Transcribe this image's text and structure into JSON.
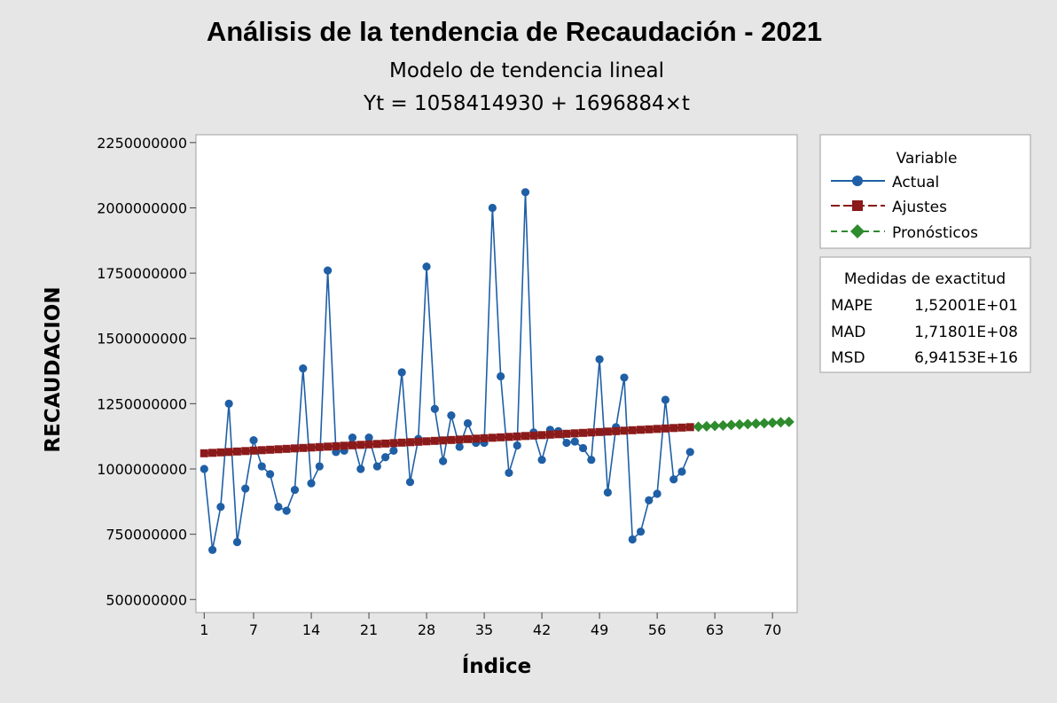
{
  "chart_data": {
    "type": "line",
    "title": "Análisis de la tendencia de Recaudación - 2021",
    "subtitle": "Modelo de tendencia lineal",
    "equation": "Yt = 1058414930 + 1696884×t",
    "xlabel": "Índice",
    "ylabel": "RECAUDACION",
    "xlim": [
      0,
      73
    ],
    "ylim": [
      450000000,
      2280000000
    ],
    "x_ticks": [
      1,
      7,
      14,
      21,
      28,
      35,
      42,
      49,
      56,
      63,
      70
    ],
    "x_tick_labels": [
      "1",
      "7",
      "14",
      "21",
      "28",
      "35",
      "42",
      "49",
      "56",
      "63",
      "70"
    ],
    "y_ticks": [
      500000000,
      750000000,
      1000000000,
      1250000000,
      1500000000,
      1750000000,
      2000000000,
      2250000000
    ],
    "y_tick_labels": [
      "500000000",
      "750000000",
      "1000000000",
      "1250000000",
      "1500000000",
      "1750000000",
      "2000000000",
      "2250000000"
    ],
    "grid": false,
    "legend_position": "right",
    "trend": {
      "intercept": 1058414930,
      "slope": 1696884,
      "fit_range": [
        1,
        60
      ]
    },
    "series": [
      {
        "name": "Actual",
        "color": "#1f5fa6",
        "marker": "circle",
        "x": [
          1,
          2,
          3,
          4,
          5,
          6,
          7,
          8,
          9,
          10,
          11,
          12,
          13,
          14,
          15,
          16,
          17,
          18,
          19,
          20,
          21,
          22,
          23,
          24,
          25,
          26,
          27,
          28,
          29,
          30,
          31,
          32,
          33,
          34,
          35,
          36,
          37,
          38,
          39,
          40,
          41,
          42,
          43,
          44,
          45,
          46,
          47,
          48,
          49,
          50,
          51,
          52,
          53,
          54,
          55,
          56,
          57,
          58,
          59,
          60
        ],
        "values": [
          1000000000,
          690000000,
          855000000,
          1250000000,
          720000000,
          925000000,
          1110000000,
          1010000000,
          980000000,
          855000000,
          840000000,
          920000000,
          1385000000,
          945000000,
          1010000000,
          1760000000,
          1065000000,
          1070000000,
          1120000000,
          1000000000,
          1120000000,
          1010000000,
          1045000000,
          1070000000,
          1370000000,
          950000000,
          1115000000,
          1775000000,
          1230000000,
          1030000000,
          1205000000,
          1085000000,
          1175000000,
          1100000000,
          1100000000,
          2000000000,
          1355000000,
          985000000,
          1090000000,
          2060000000,
          1140000000,
          1035000000,
          1150000000,
          1145000000,
          1100000000,
          1105000000,
          1080000000,
          1035000000,
          1420000000,
          910000000,
          1160000000,
          1350000000,
          730000000,
          760000000,
          880000000,
          905000000,
          1265000000,
          960000000,
          990000000,
          1065000000
        ]
      },
      {
        "name": "Ajustes",
        "color": "#8b1a1a",
        "marker": "square",
        "x_start": 1,
        "x_end": 60
      },
      {
        "name": "Pronósticos",
        "color": "#2e8b2e",
        "marker": "diamond",
        "x_start": 61,
        "x_end": 72
      }
    ],
    "legend": {
      "title": "Variable",
      "entries": [
        "Actual",
        "Ajustes",
        "Pronósticos"
      ]
    },
    "accuracy": {
      "title": "Medidas de exactitud",
      "rows": [
        {
          "label": "MAPE",
          "value": "1,52001E+01"
        },
        {
          "label": "MAD",
          "value": "1,71801E+08"
        },
        {
          "label": "MSD",
          "value": "6,94153E+16"
        }
      ]
    }
  }
}
